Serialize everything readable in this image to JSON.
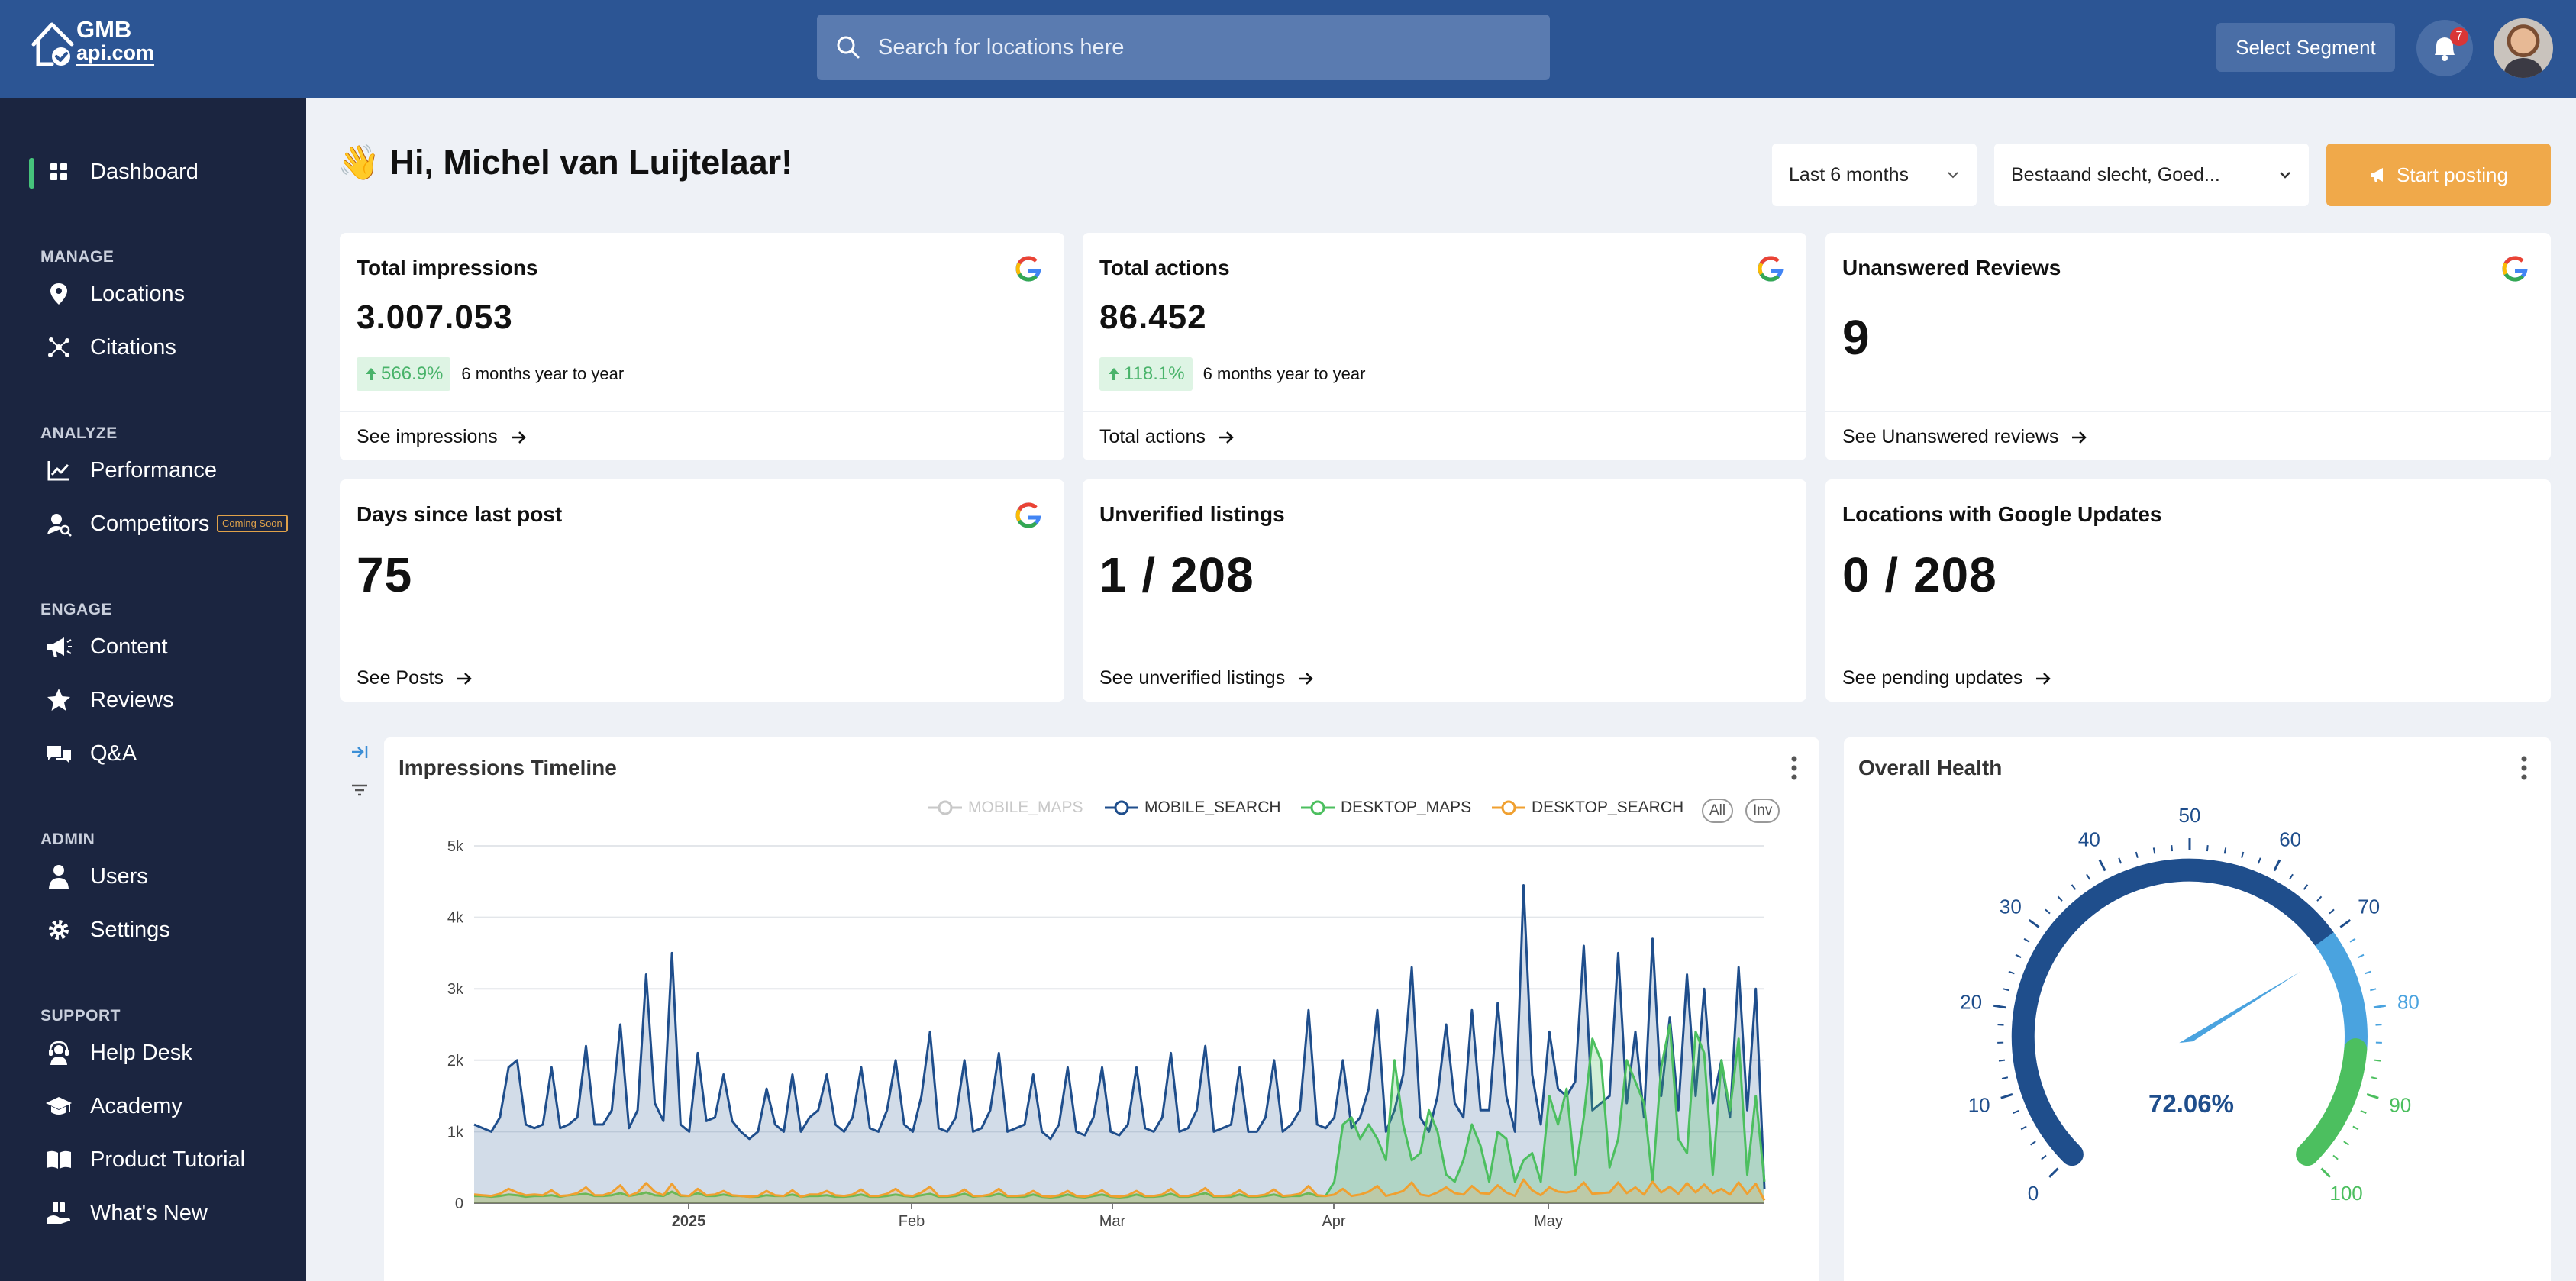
{
  "header": {
    "logo_top": "GMB",
    "logo_bottom": "api.com",
    "search_placeholder": "Search for locations here",
    "select_segment": "Select Segment",
    "notification_count": "7"
  },
  "sidebar": {
    "dashboard": "Dashboard",
    "sections": {
      "manage": "MANAGE",
      "analyze": "ANALYZE",
      "engage": "ENGAGE",
      "admin": "ADMIN",
      "support": "SUPPORT"
    },
    "items": {
      "locations": "Locations",
      "citations": "Citations",
      "performance": "Performance",
      "competitors": "Competitors",
      "competitors_badge": "Coming Soon",
      "content": "Content",
      "reviews": "Reviews",
      "qa": "Q&A",
      "users": "Users",
      "settings": "Settings",
      "help_desk": "Help Desk",
      "academy": "Academy",
      "product_tutorial": "Product Tutorial",
      "whats_new": "What's New"
    }
  },
  "main": {
    "greeting": "👋 Hi, Michel van Luijtelaar!",
    "period_select": "Last 6 months",
    "filter_select": "Bestaand slecht, Goed...",
    "start_posting": "Start posting"
  },
  "cards": {
    "impressions": {
      "title": "Total impressions",
      "value": "3.007.053",
      "change": "566.9%",
      "period": "6 months year to year",
      "link": "See impressions"
    },
    "actions": {
      "title": "Total actions",
      "value": "86.452",
      "change": "118.1%",
      "period": "6 months year to year",
      "link": "Total actions"
    },
    "reviews": {
      "title": "Unanswered Reviews",
      "value": "9",
      "link": "See Unanswered reviews"
    },
    "days_post": {
      "title": "Days since last post",
      "value": "75",
      "link": "See Posts"
    },
    "unverified": {
      "title": "Unverified listings",
      "value": "1 / 208",
      "link": "See unverified listings"
    },
    "updates": {
      "title": "Locations with Google Updates",
      "value": "0 / 208",
      "link": "See pending updates"
    }
  },
  "timeline": {
    "title": "Impressions Timeline",
    "all_label": "All",
    "inv_label": "Inv"
  },
  "health": {
    "title": "Overall Health",
    "value_label": "72.06%"
  },
  "colors": {
    "topbar": "#2c5594",
    "sidebar": "#1b2540",
    "accent_orange": "#f0a94a",
    "positive_green": "#49b36a",
    "mobile_search": "#1f4e8c",
    "desktop_maps": "#4cbf5f",
    "desktop_search": "#f0a030",
    "mobile_maps_hidden": "#c8c8c8"
  },
  "chart_data": [
    {
      "type": "area",
      "title": "Impressions Timeline",
      "x_ticks": [
        "2025",
        "Feb",
        "Mar",
        "Apr",
        "May"
      ],
      "y_ticks": [
        "0",
        "1k",
        "2k",
        "3k",
        "4k",
        "5k"
      ],
      "ylim": [
        0,
        5000
      ],
      "legend_position": "top-right",
      "grid": true,
      "series": [
        {
          "name": "MOBILE_MAPS",
          "hidden": true,
          "color": "#c8c8c8",
          "values": []
        },
        {
          "name": "MOBILE_SEARCH",
          "color": "#1f4e8c",
          "values": [
            1100,
            1050,
            1000,
            1200,
            1900,
            2000,
            1100,
            1050,
            1100,
            1900,
            1050,
            1100,
            1200,
            2200,
            1100,
            1100,
            1300,
            2500,
            1050,
            1300,
            3200,
            1400,
            1150,
            3500,
            1100,
            1000,
            2100,
            1150,
            1200,
            1800,
            1150,
            1000,
            900,
            1000,
            1600,
            1100,
            1000,
            1800,
            1000,
            1200,
            1300,
            1800,
            1100,
            1000,
            1200,
            1900,
            1050,
            1000,
            1300,
            2000,
            1100,
            1000,
            1500,
            2400,
            1050,
            1000,
            1200,
            2000,
            1000,
            1050,
            1300,
            2100,
            1000,
            1050,
            1100,
            1800,
            1000,
            900,
            1100,
            1900,
            1000,
            950,
            1200,
            1900,
            1000,
            950,
            1100,
            1900,
            1050,
            1000,
            1200,
            2100,
            1000,
            1050,
            1300,
            2200,
            1000,
            1050,
            1100,
            1900,
            1000,
            1000,
            1200,
            2000,
            1000,
            1100,
            1300,
            2700,
            1100,
            1050,
            1200,
            2000,
            1050,
            1200,
            1600,
            2700,
            1000,
            1300,
            1800,
            3300,
            1200,
            1000,
            1500,
            2500,
            1400,
            1200,
            2700,
            1300,
            1300,
            2800,
            1500,
            1000,
            4450,
            1800,
            1100,
            2400,
            1600,
            1500,
            1700,
            3600,
            1300,
            1400,
            1500,
            3500,
            1400,
            2400,
            1200,
            3700,
            1500,
            2600,
            1300,
            3200,
            1500,
            3000,
            1400,
            2000,
            1200,
            3300,
            1300,
            3000,
            200
          ]
        },
        {
          "name": "DESKTOP_MAPS",
          "color": "#4cbf5f",
          "values": [
            100,
            100,
            90,
            100,
            120,
            110,
            90,
            100,
            100,
            110,
            90,
            110,
            120,
            130,
            100,
            100,
            110,
            140,
            100,
            120,
            150,
            110,
            100,
            160,
            100,
            100,
            140,
            100,
            100,
            120,
            100,
            100,
            90,
            90,
            110,
            100,
            100,
            120,
            90,
            100,
            100,
            110,
            90,
            90,
            100,
            120,
            90,
            90,
            100,
            120,
            100,
            90,
            110,
            130,
            90,
            90,
            100,
            130,
            90,
            100,
            100,
            130,
            90,
            90,
            90,
            120,
            90,
            80,
            90,
            120,
            90,
            80,
            100,
            120,
            90,
            80,
            90,
            120,
            90,
            90,
            100,
            130,
            90,
            90,
            110,
            140,
            90,
            90,
            90,
            120,
            90,
            90,
            100,
            120,
            90,
            100,
            100,
            140,
            100,
            100,
            300,
            1100,
            1200,
            900,
            1100,
            900,
            600,
            2000,
            1100,
            600,
            700,
            1300,
            1000,
            400,
            300,
            600,
            1100,
            800,
            300,
            1000,
            900,
            300,
            600,
            700,
            300,
            1500,
            1100,
            1600,
            400,
            1200,
            2300,
            2000,
            500,
            900,
            2000,
            1700,
            1400,
            300,
            1900,
            2500,
            900,
            700,
            2400,
            2100,
            400,
            2000,
            1300,
            2300,
            400,
            1500,
            300
          ]
        },
        {
          "name": "DESKTOP_SEARCH",
          "color": "#f0a030",
          "values": [
            120,
            110,
            100,
            130,
            200,
            150,
            110,
            120,
            110,
            180,
            100,
            110,
            140,
            220,
            110,
            110,
            150,
            250,
            100,
            150,
            280,
            160,
            110,
            270,
            110,
            100,
            200,
            110,
            120,
            170,
            110,
            100,
            90,
            100,
            170,
            110,
            100,
            180,
            90,
            120,
            120,
            170,
            110,
            100,
            120,
            190,
            100,
            100,
            130,
            200,
            110,
            100,
            150,
            230,
            100,
            100,
            120,
            190,
            100,
            100,
            120,
            200,
            100,
            100,
            110,
            170,
            100,
            90,
            110,
            170,
            100,
            90,
            120,
            180,
            100,
            90,
            110,
            170,
            100,
            100,
            120,
            200,
            100,
            100,
            130,
            210,
            100,
            100,
            110,
            180,
            100,
            100,
            120,
            190,
            100,
            110,
            130,
            240,
            110,
            100,
            120,
            200,
            100,
            120,
            160,
            240,
            100,
            130,
            170,
            290,
            120,
            100,
            150,
            220,
            140,
            120,
            240,
            140,
            130,
            250,
            150,
            100,
            330,
            180,
            110,
            220,
            160,
            150,
            170,
            290,
            130,
            140,
            150,
            290,
            140,
            220,
            120,
            300,
            150,
            230,
            130,
            280,
            150,
            260,
            140,
            200,
            120,
            290,
            130,
            270,
            40
          ]
        }
      ]
    },
    {
      "type": "gauge",
      "title": "Overall Health",
      "value": 72.06,
      "min": 0,
      "max": 100,
      "ticks": [
        "0",
        "10",
        "20",
        "30",
        "40",
        "50",
        "60",
        "70",
        "80",
        "90",
        "100"
      ],
      "bands": [
        {
          "from": 0,
          "to": 70,
          "color": "#1f4e8c"
        },
        {
          "from": 70,
          "to": 85,
          "color": "#4aa3df"
        },
        {
          "from": 85,
          "to": 100,
          "color": "#4cbf5f"
        }
      ]
    }
  ]
}
